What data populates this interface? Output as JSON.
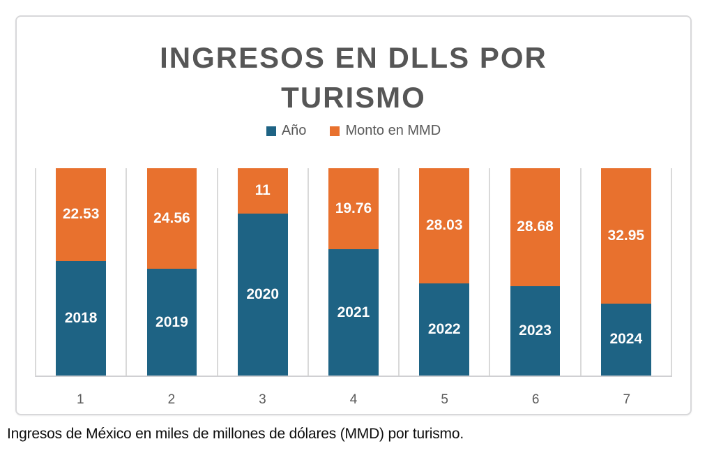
{
  "title": "INGRESOS EN DLLS POR TURISMO",
  "legend": [
    {
      "label": "Año",
      "color": "#1e6384"
    },
    {
      "label": "Monto en MMD",
      "color": "#e8712e"
    }
  ],
  "caption": "Ingresos de México en miles de millones de dólares (MMD) por turismo.",
  "chart_data": {
    "type": "bar",
    "subtype": "stacked-column",
    "title": "INGRESOS EN DLLS POR TURISMO",
    "categories": [
      "1",
      "2",
      "3",
      "4",
      "5",
      "6",
      "7"
    ],
    "series": [
      {
        "name": "Año",
        "color": "#1e6384",
        "values": [
          2018,
          2019,
          2020,
          2021,
          2022,
          2023,
          2024
        ],
        "data_labels": [
          "2018",
          "2019",
          "2020",
          "2021",
          "2022",
          "2023",
          "2024"
        ]
      },
      {
        "name": "Monto en MMD",
        "color": "#e8712e",
        "values": [
          22.53,
          24.56,
          11,
          19.76,
          28.03,
          28.68,
          32.95
        ],
        "data_labels": [
          "22.53",
          "24.56",
          "11",
          "19.76",
          "28.03",
          "28.68",
          "32.95"
        ]
      }
    ],
    "xlabel": "",
    "ylabel": "",
    "layout": {
      "legend_position": "top",
      "grid": "vertical-only",
      "bars_full_height": true,
      "monto_axis_span_units": 50.5,
      "data_label_color": "#ffffff",
      "gridline_color": "#d9d9d9",
      "text_color": "#595959"
    }
  }
}
